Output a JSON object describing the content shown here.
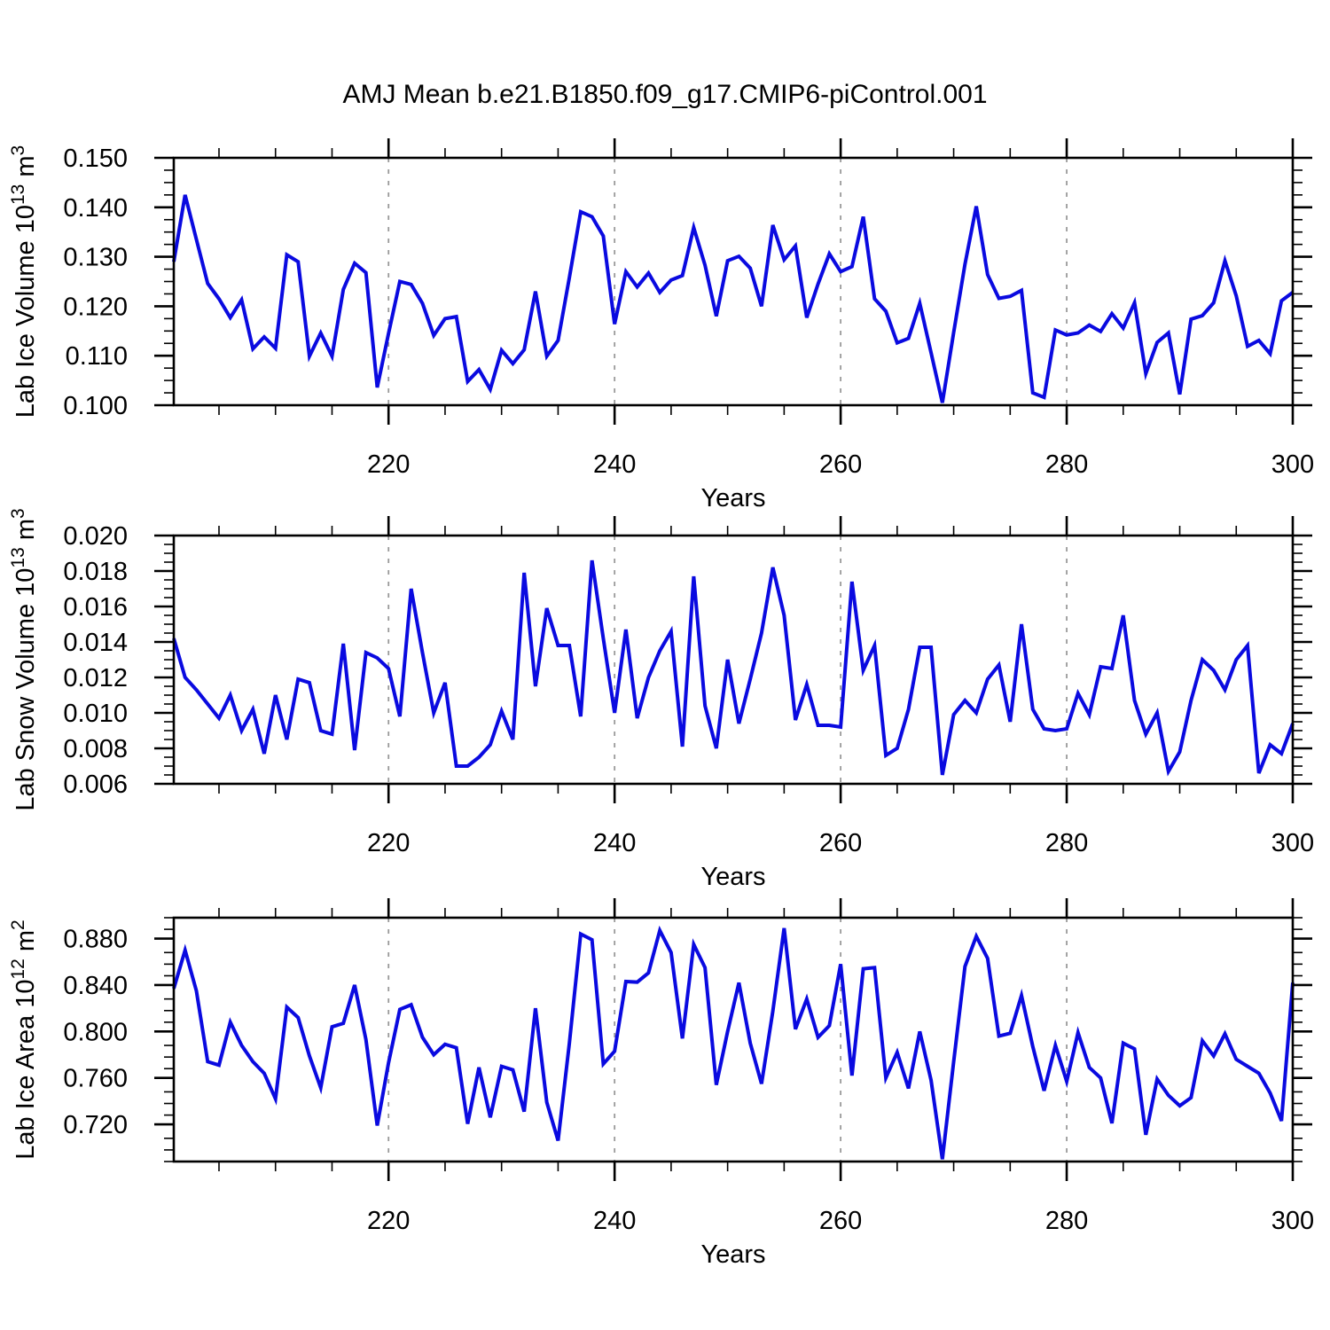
{
  "title": "AMJ Mean b.e21.B1850.f09_g17.CMIP6-piControl.001",
  "line_color": "#0a0ae0",
  "grid_color": "#9a9a9a",
  "axis_color": "#000000",
  "chart_data": [
    {
      "type": "line",
      "title": "",
      "ylabel": "Lab Ice Volume 10^13 m^3",
      "ylabel_parts": {
        "name": "Lab Ice Volume",
        "base": "10",
        "exponent": "13",
        "unit": "m",
        "unit_exponent": "3"
      },
      "xlabel": "Years",
      "ylim": [
        0.1,
        0.15
      ],
      "yticks": [
        0.1,
        0.11,
        0.12,
        0.13,
        0.14,
        0.15
      ],
      "ytick_labels": [
        "0.100",
        "0.110",
        "0.120",
        "0.130",
        "0.140",
        "0.150"
      ],
      "y_minor_step": 0.0025,
      "xlim": [
        201,
        300
      ],
      "xticks": [
        220,
        240,
        260,
        280,
        300
      ],
      "xtick_labels": [
        "220",
        "240",
        "260",
        "280",
        "300"
      ],
      "x_minor_step": 5,
      "grid_x": [
        220,
        240,
        260,
        280
      ],
      "x_start": 201,
      "values": [
        0.129,
        0.1425,
        0.1335,
        0.1246,
        0.1215,
        0.1177,
        0.1213,
        0.1114,
        0.1138,
        0.1115,
        0.1304,
        0.129,
        0.1099,
        0.1146,
        0.1099,
        0.1234,
        0.1287,
        0.1268,
        0.1036,
        0.1145,
        0.125,
        0.1244,
        0.1206,
        0.1141,
        0.1175,
        0.1179,
        0.1048,
        0.1072,
        0.1032,
        0.1111,
        0.1084,
        0.1112,
        0.123,
        0.1099,
        0.1131,
        0.1258,
        0.1391,
        0.1381,
        0.1342,
        0.1164,
        0.127,
        0.1239,
        0.1267,
        0.1228,
        0.1253,
        0.1262,
        0.1359,
        0.1283,
        0.118,
        0.1292,
        0.1301,
        0.1277,
        0.12,
        0.1364,
        0.1294,
        0.1322,
        0.1177,
        0.1245,
        0.1306,
        0.127,
        0.128,
        0.1381,
        0.1215,
        0.119,
        0.1126,
        0.1135,
        0.1206,
        0.1106,
        0.1005,
        0.1147,
        0.1285,
        0.1402,
        0.1264,
        0.1216,
        0.122,
        0.1232,
        0.1025,
        0.1016,
        0.1152,
        0.1142,
        0.1146,
        0.1162,
        0.1149,
        0.1185,
        0.1156,
        0.1207,
        0.1064,
        0.1127,
        0.1146,
        0.1022,
        0.1174,
        0.1181,
        0.1207,
        0.1292,
        0.1221,
        0.1119,
        0.1131,
        0.1104,
        0.1211,
        0.1228
      ]
    },
    {
      "type": "line",
      "title": "",
      "ylabel": "Lab Snow Volume 10^13 m^3",
      "ylabel_parts": {
        "name": "Lab Snow Volume",
        "base": "10",
        "exponent": "13",
        "unit": "m",
        "unit_exponent": "3"
      },
      "xlabel": "Years",
      "ylim": [
        0.006,
        0.02
      ],
      "yticks": [
        0.006,
        0.008,
        0.01,
        0.012,
        0.014,
        0.016,
        0.018,
        0.02
      ],
      "ytick_labels": [
        "0.006",
        "0.008",
        "0.010",
        "0.012",
        "0.014",
        "0.016",
        "0.018",
        "0.020"
      ],
      "y_minor_step": 0.0005,
      "xlim": [
        201,
        300
      ],
      "xticks": [
        220,
        240,
        260,
        280,
        300
      ],
      "xtick_labels": [
        "220",
        "240",
        "260",
        "280",
        "300"
      ],
      "x_minor_step": 5,
      "grid_x": [
        220,
        240,
        260,
        280
      ],
      "x_start": 201,
      "values": [
        0.0142,
        0.012,
        0.0113,
        0.0105,
        0.0097,
        0.011,
        0.009,
        0.0102,
        0.0077,
        0.011,
        0.0085,
        0.0119,
        0.0117,
        0.009,
        0.0088,
        0.0139,
        0.0079,
        0.0134,
        0.0131,
        0.0125,
        0.0098,
        0.017,
        0.0134,
        0.01,
        0.0117,
        0.007,
        0.007,
        0.0075,
        0.0082,
        0.0101,
        0.0085,
        0.0179,
        0.0115,
        0.0159,
        0.0138,
        0.0138,
        0.0098,
        0.0186,
        0.0142,
        0.01,
        0.0147,
        0.0097,
        0.012,
        0.0135,
        0.0146,
        0.0081,
        0.0177,
        0.0104,
        0.008,
        0.013,
        0.0094,
        0.0119,
        0.0145,
        0.0182,
        0.0155,
        0.0096,
        0.0116,
        0.0093,
        0.0093,
        0.0092,
        0.0174,
        0.0124,
        0.0138,
        0.0076,
        0.008,
        0.0102,
        0.0137,
        0.0137,
        0.0065,
        0.0099,
        0.0107,
        0.01,
        0.0119,
        0.0127,
        0.0095,
        0.015,
        0.0102,
        0.0091,
        0.009,
        0.0091,
        0.0111,
        0.0099,
        0.0126,
        0.0125,
        0.0155,
        0.0107,
        0.0088,
        0.01,
        0.0067,
        0.0078,
        0.0107,
        0.013,
        0.0124,
        0.0113,
        0.013,
        0.0138,
        0.0066,
        0.0082,
        0.0077,
        0.0094
      ]
    },
    {
      "type": "line",
      "title": "",
      "ylabel": "Lab Ice Area 10^12 m^2",
      "ylabel_parts": {
        "name": "Lab Ice Area",
        "base": "10",
        "exponent": "12",
        "unit": "m",
        "unit_exponent": "2"
      },
      "xlabel": "Years",
      "ylim": [
        0.688,
        0.898
      ],
      "yticks": [
        0.72,
        0.76,
        0.8,
        0.84,
        0.88
      ],
      "ytick_labels": [
        "0.720",
        "0.760",
        "0.800",
        "0.840",
        "0.880"
      ],
      "y_minor_step": 0.01,
      "xlim": [
        201,
        300
      ],
      "xticks": [
        220,
        240,
        260,
        280,
        300
      ],
      "xtick_labels": [
        "220",
        "240",
        "260",
        "280",
        "300"
      ],
      "x_minor_step": 5,
      "grid_x": [
        220,
        240,
        260,
        280
      ],
      "x_start": 201,
      "values": [
        0.837,
        0.87,
        0.835,
        0.774,
        0.771,
        0.808,
        0.788,
        0.774,
        0.764,
        0.742,
        0.821,
        0.812,
        0.779,
        0.7515,
        0.804,
        0.807,
        0.84,
        0.793,
        0.719,
        0.773,
        0.819,
        0.823,
        0.795,
        0.78,
        0.789,
        0.786,
        0.7205,
        0.769,
        0.726,
        0.77,
        0.767,
        0.731,
        0.82,
        0.739,
        0.706,
        0.79,
        0.884,
        0.879,
        0.772,
        0.783,
        0.843,
        0.8425,
        0.8505,
        0.887,
        0.868,
        0.794,
        0.875,
        0.855,
        0.754,
        0.8,
        0.842,
        0.79,
        0.755,
        0.8175,
        0.889,
        0.802,
        0.828,
        0.795,
        0.805,
        0.858,
        0.762,
        0.854,
        0.855,
        0.76,
        0.782,
        0.751,
        0.8,
        0.758,
        0.69,
        0.774,
        0.856,
        0.882,
        0.863,
        0.796,
        0.7985,
        0.831,
        0.787,
        0.749,
        0.788,
        0.757,
        0.799,
        0.769,
        0.76,
        0.721,
        0.79,
        0.785,
        0.711,
        0.759,
        0.745,
        0.736,
        0.743,
        0.792,
        0.779,
        0.798,
        0.776,
        0.77,
        0.764,
        0.747,
        0.723,
        0.842
      ]
    }
  ]
}
